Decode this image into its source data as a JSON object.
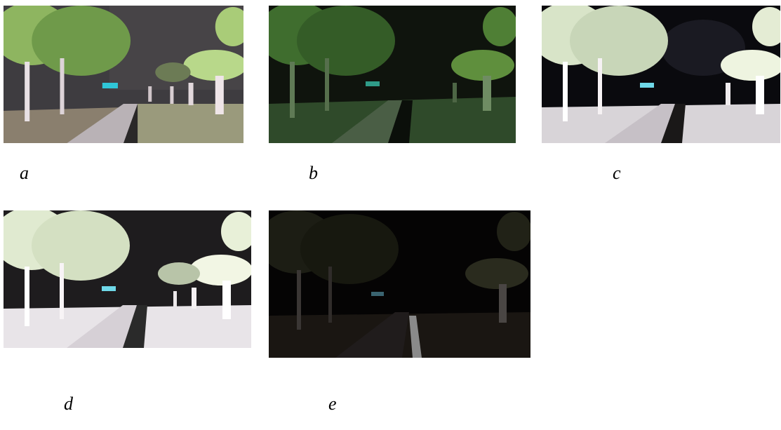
{
  "figure": {
    "panels": [
      {
        "id": "a",
        "caption": "a",
        "tone": "enhanced-natural"
      },
      {
        "id": "b",
        "caption": "b",
        "tone": "greenish-dark"
      },
      {
        "id": "c",
        "caption": "c",
        "tone": "bright-white"
      },
      {
        "id": "d",
        "caption": "d",
        "tone": "bright-overexposed"
      },
      {
        "id": "e",
        "caption": "e",
        "tone": "original-dark"
      }
    ]
  }
}
